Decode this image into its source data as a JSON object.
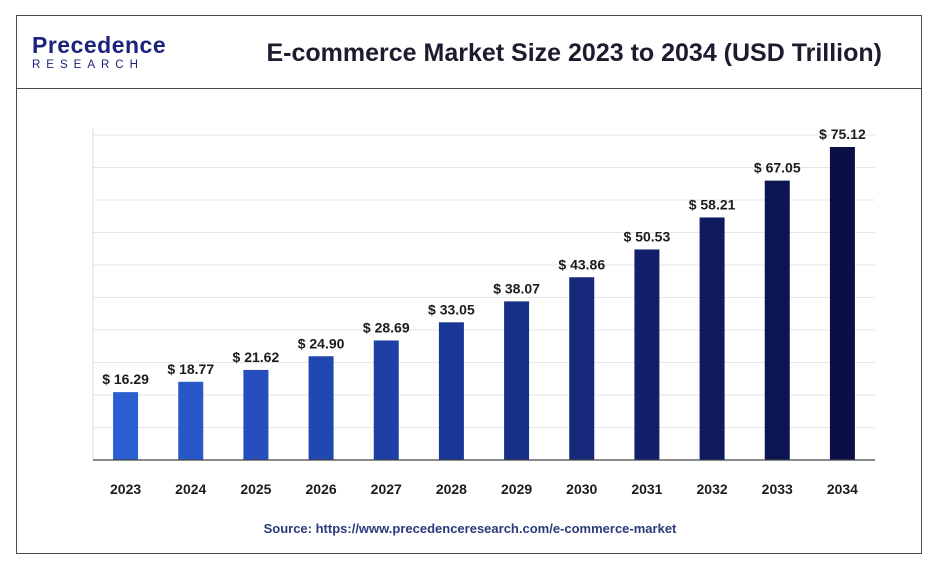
{
  "header": {
    "logo_main": "Precedence",
    "logo_sub": "RESEARCH",
    "title": "E-commerce Market Size 2023 to 2034 (USD Trillion)"
  },
  "source": "Source: https://www.precedenceresearch.com/e-commerce-market",
  "chart_data": {
    "type": "bar",
    "title": "E-commerce Market Size 2023 to 2034 (USD Trillion)",
    "xlabel": "",
    "ylabel": "",
    "categories": [
      "2023",
      "2024",
      "2025",
      "2026",
      "2027",
      "2028",
      "2029",
      "2030",
      "2031",
      "2032",
      "2033",
      "2034"
    ],
    "values": [
      16.29,
      18.77,
      21.62,
      24.9,
      28.69,
      33.05,
      38.07,
      43.86,
      50.53,
      58.21,
      67.05,
      75.12
    ],
    "labels": [
      "$ 16.29",
      "$ 18.77",
      "$ 21.62",
      "$ 24.90",
      "$ 28.69",
      "$ 33.05",
      "$ 38.07",
      "$ 43.86",
      "$ 50.53",
      "$ 58.21",
      "$ 67.05",
      "$ 75.12"
    ],
    "ylim": [
      0,
      80
    ],
    "grid": true,
    "bar_colors": [
      "#2c5fd1",
      "#2757c8",
      "#244fbd",
      "#2147b0",
      "#1e3fa3",
      "#1b3795",
      "#182f87",
      "#15287a",
      "#12206c",
      "#0f1a5f",
      "#0c1552",
      "#0a1045"
    ]
  }
}
